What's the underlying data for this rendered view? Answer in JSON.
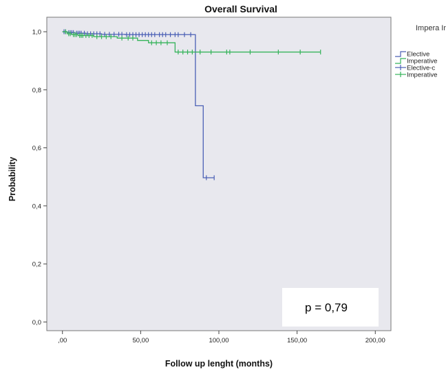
{
  "chart_data": {
    "type": "line",
    "title": "Overall Survival",
    "xlabel": "Follow up lenght (months)",
    "ylabel": "Probability",
    "xlim": [
      -10,
      210
    ],
    "ylim": [
      -0.03,
      1.05
    ],
    "x_ticks": [
      0,
      50,
      100,
      150,
      200
    ],
    "x_tick_labels": [
      ",00",
      "50,00",
      "100,00",
      "150,00",
      "200,00"
    ],
    "y_ticks": [
      0,
      0.2,
      0.4,
      0.6,
      0.8,
      1.0
    ],
    "y_tick_labels": [
      "0,0",
      "0,2",
      "0,4",
      "0,6",
      "0,8",
      "1,0"
    ],
    "grid": false,
    "legend_position": "right",
    "legend_title": "Impera Indica",
    "annotation": "p = 0,79",
    "series": [
      {
        "name": "Elective",
        "color": "#4a5fb5",
        "step_x": [
          0,
          3,
          8,
          15,
          25,
          40,
          85,
          90,
          97
        ],
        "step_y": [
          1.0,
          0.997,
          0.995,
          0.993,
          0.991,
          0.99,
          0.745,
          0.497,
          0.497
        ],
        "censored_x": [
          1,
          2,
          4,
          5,
          6,
          7,
          9,
          10,
          11,
          12,
          14,
          16,
          18,
          20,
          22,
          24,
          27,
          30,
          33,
          36,
          38,
          41,
          43,
          45,
          47,
          49,
          51,
          53,
          55,
          57,
          59,
          62,
          64,
          66,
          69,
          72,
          74,
          78,
          82,
          92,
          97
        ],
        "censored_y": [
          1.0,
          1.0,
          0.997,
          0.997,
          0.997,
          0.997,
          0.995,
          0.995,
          0.995,
          0.995,
          0.995,
          0.993,
          0.993,
          0.993,
          0.993,
          0.993,
          0.991,
          0.991,
          0.991,
          0.991,
          0.991,
          0.99,
          0.99,
          0.99,
          0.99,
          0.99,
          0.99,
          0.99,
          0.99,
          0.99,
          0.99,
          0.99,
          0.99,
          0.99,
          0.99,
          0.99,
          0.99,
          0.99,
          0.99,
          0.497,
          0.497
        ]
      },
      {
        "name": "Imperative",
        "color": "#35b35a",
        "step_x": [
          0,
          3,
          6,
          10,
          20,
          35,
          48,
          55,
          72,
          165
        ],
        "step_y": [
          1.0,
          0.993,
          0.99,
          0.987,
          0.983,
          0.978,
          0.97,
          0.962,
          0.93,
          0.93
        ],
        "censored_x": [
          2,
          4,
          5,
          7,
          8,
          9,
          11,
          12,
          13,
          15,
          17,
          19,
          22,
          25,
          28,
          31,
          38,
          42,
          45,
          57,
          60,
          63,
          67,
          74,
          77,
          80,
          83,
          88,
          95,
          105,
          107,
          120,
          138,
          152,
          165
        ],
        "censored_y": [
          1.0,
          0.993,
          0.993,
          0.99,
          0.99,
          0.99,
          0.987,
          0.987,
          0.987,
          0.987,
          0.987,
          0.987,
          0.983,
          0.983,
          0.983,
          0.983,
          0.978,
          0.978,
          0.978,
          0.962,
          0.962,
          0.962,
          0.962,
          0.93,
          0.93,
          0.93,
          0.93,
          0.93,
          0.93,
          0.93,
          0.93,
          0.93,
          0.93,
          0.93,
          0.93
        ]
      }
    ],
    "legend_entries": [
      {
        "label": "Elective",
        "color": "#4a5fb5",
        "kind": "step"
      },
      {
        "label": "Imperative",
        "color": "#35b35a",
        "kind": "step"
      },
      {
        "label": "Elective-c",
        "color": "#4a5fb5",
        "kind": "censor"
      },
      {
        "label": "Imperative",
        "color": "#35b35a",
        "kind": "censor"
      }
    ]
  }
}
